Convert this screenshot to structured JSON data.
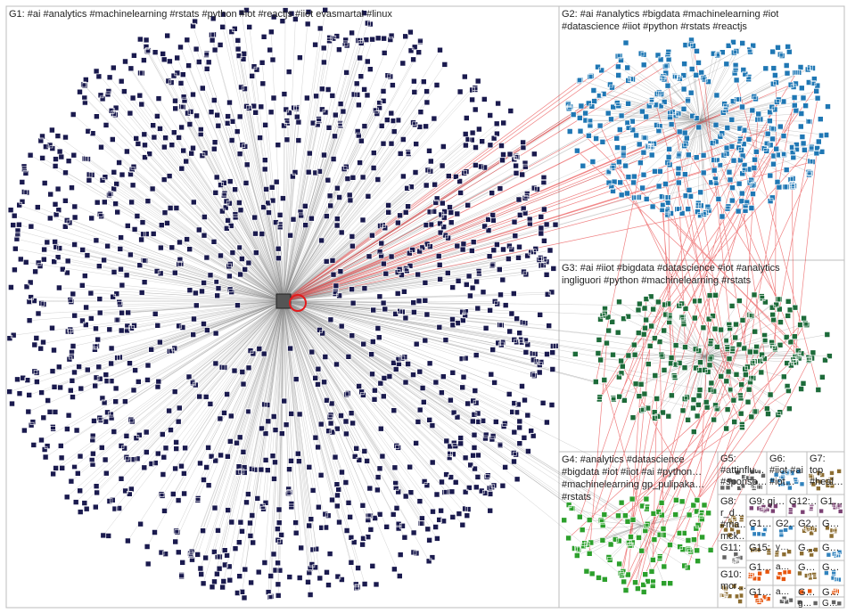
{
  "groups": [
    {
      "id": "G1",
      "label": "G1: #ai #analytics #machinelearning #rstats #python #iot #reactjs #iiot evasmartai #linux"
    },
    {
      "id": "G2",
      "label": "G2: #ai #analytics #bigdata #machinelearning #iot\n#datascience #iiot #python #rstats #reactjs"
    },
    {
      "id": "G3",
      "label": "G3: #ai #iiot #bigdata #datascience #iot #analytics\ningliguori #python #machinelearning #rstats"
    },
    {
      "id": "G4",
      "label": "G4: #analytics #datascience\n#bigdata #iot #iiot #ai #python…\n#machinelearning gp_pulipaka…\n#rstats"
    },
    {
      "id": "G5",
      "label": "G5:\n#attinflu…\n#sponso…"
    },
    {
      "id": "G6",
      "label": "G6:\n#iiot #ai\n#iot…"
    },
    {
      "id": "G7",
      "label": "G7:\ntop\n#heal…"
    },
    {
      "id": "G8",
      "label": "G8:\nr_d…\n#ma…\nmck…"
    },
    {
      "id": "G9",
      "label": "G9: gi…"
    },
    {
      "id": "G10",
      "label": "G10:\nmcr…"
    },
    {
      "id": "G11",
      "label": "G11:"
    },
    {
      "id": "G12",
      "label": "G12:…"
    },
    {
      "id": "G13",
      "label": "G1…"
    },
    {
      "id": "G14",
      "label": "G1…"
    },
    {
      "id": "G15",
      "label": "G15:"
    },
    {
      "id": "G16",
      "label": "G1…"
    },
    {
      "id": "G17",
      "label": "G1…"
    },
    {
      "id": "G18",
      "label": "G2…"
    },
    {
      "id": "G19",
      "label": "G2…"
    },
    {
      "id": "G20",
      "label": "G…"
    },
    {
      "id": "G21",
      "label": "G…"
    },
    {
      "id": "G22",
      "label": "G…"
    },
    {
      "id": "G23",
      "label": "G…"
    },
    {
      "id": "G24",
      "label": "G…"
    },
    {
      "id": "G25",
      "label": "G…"
    },
    {
      "id": "G26",
      "label": "G…"
    },
    {
      "id": "G27",
      "label": "G…"
    },
    {
      "id": "G28",
      "label": "G…"
    },
    {
      "id": "G29",
      "label": "G…"
    },
    {
      "id": "G30",
      "label": "G…"
    },
    {
      "id": "G31",
      "label": "y…"
    },
    {
      "id": "G32",
      "label": "a…"
    },
    {
      "id": "G33",
      "label": "a…"
    },
    {
      "id": "G34",
      "label": "g…"
    },
    {
      "id": "G35",
      "label": "b…"
    },
    {
      "id": "G36",
      "label": "b…"
    }
  ],
  "colors": {
    "g1_node": "#1a1a4e",
    "g2_node": "#1f77b4",
    "g3_node": "#1d6b3a",
    "g4_node": "#2ca02c",
    "edge": "#8c8c8c",
    "inter_edge": "#e31a1c",
    "box_border": "#bdbdbd"
  }
}
